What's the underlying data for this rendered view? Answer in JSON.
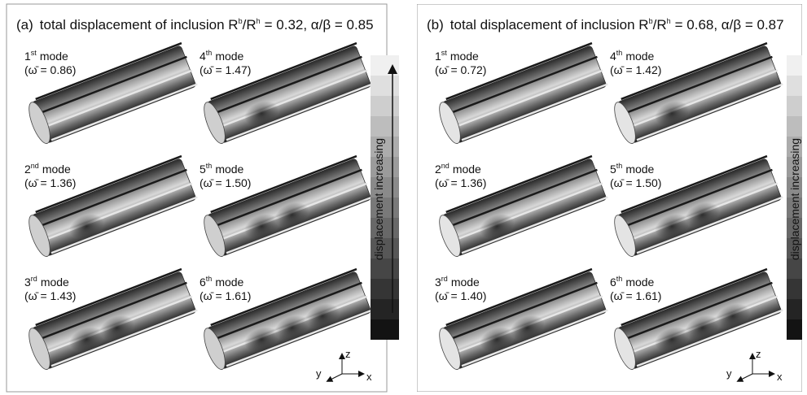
{
  "panels": [
    {
      "label": "(a)",
      "title": {
        "text": "total displacement of inclusion R",
        "sup1": "b",
        "mid": "/R",
        "sup2": "h",
        "rest": "= 0.32, α/β = 0.85"
      },
      "modes": [
        {
          "ordinal": "1",
          "suffix": "st",
          "word": "mode",
          "freq": "(ω̄ = 0.86)"
        },
        {
          "ordinal": "2",
          "suffix": "nd",
          "word": "mode",
          "freq": "(ω̄ = 1.36)"
        },
        {
          "ordinal": "3",
          "suffix": "rd",
          "word": "mode",
          "freq": "(ω̄ = 1.43)"
        },
        {
          "ordinal": "4",
          "suffix": "th",
          "word": "mode",
          "freq": "(ω̄ = 1.47)"
        },
        {
          "ordinal": "5",
          "suffix": "th",
          "word": "mode",
          "freq": "(ω̄ = 1.50)"
        },
        {
          "ordinal": "6",
          "suffix": "th",
          "word": "mode",
          "freq": "(ω̄ = 1.61)"
        }
      ],
      "colorbar_label": "displacement increasing",
      "axes": {
        "z": "z",
        "y": "y",
        "x": "x"
      }
    },
    {
      "label": "(b)",
      "title": {
        "text": "total displacement of inclusion R",
        "sup1": "b",
        "mid": "/R",
        "sup2": "h",
        "rest": "= 0.68, α/β = 0.87"
      },
      "modes": [
        {
          "ordinal": "1",
          "suffix": "st",
          "word": "mode",
          "freq": "(ω̄ = 0.72)"
        },
        {
          "ordinal": "2",
          "suffix": "nd",
          "word": "mode",
          "freq": "(ω̄ = 1.36)"
        },
        {
          "ordinal": "3",
          "suffix": "rd",
          "word": "mode",
          "freq": "(ω̄ = 1.40)"
        },
        {
          "ordinal": "4",
          "suffix": "th",
          "word": "mode",
          "freq": "(ω̄ = 1.42)"
        },
        {
          "ordinal": "5",
          "suffix": "th",
          "word": "mode",
          "freq": "(ω̄ = 1.50)"
        },
        {
          "ordinal": "6",
          "suffix": "th",
          "word": "mode",
          "freq": "(ω̄ = 1.61)"
        }
      ],
      "colorbar_label": "displacement increasing",
      "axes": {
        "z": "z",
        "y": "y",
        "x": "x"
      }
    }
  ]
}
